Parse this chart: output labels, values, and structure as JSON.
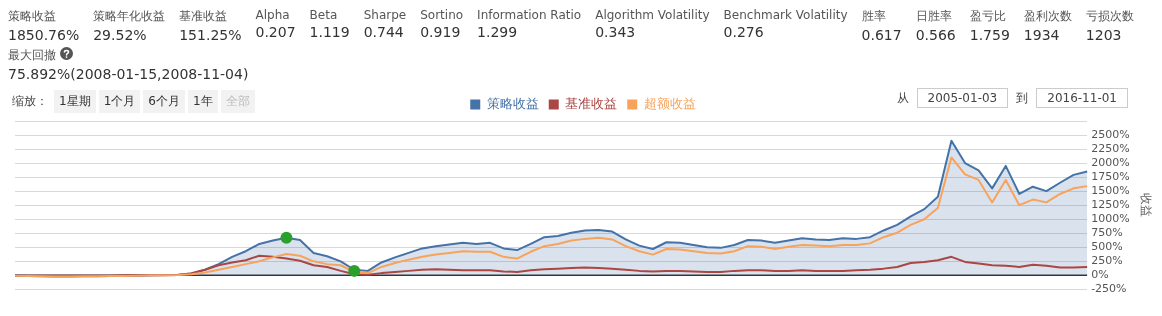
{
  "chart_data": [
    {
      "type": "other",
      "annotations": [
        "策略收益",
        "1850.76%",
        "策略年化收益",
        "29.52%",
        "基准收益",
        "151.25%",
        "Alpha",
        "0.207",
        "Beta",
        "1.119",
        "Sharpe",
        "0.744",
        "Sortino",
        "0.919",
        "Information Ratio",
        "1.299",
        "Algorithm Volatility",
        "0.343",
        "Benchmark Volatility",
        "0.276",
        "胜率",
        "0.617",
        "日胜率",
        "0.566",
        "盈亏比",
        "1.759",
        "盈利次数",
        "1934",
        "亏损次数",
        "1203",
        "最大回撤",
        "75.892%(2008-01-15,2008-11-04)"
      ]
    },
    {
      "type": "line",
      "y2label": "收益",
      "legend": "top",
      "grid": "y",
      "tick_labels": "y",
      "marker": "none",
      "annotations": [
        "缩放：",
        "1星期",
        "1个月",
        "6个月",
        "1年",
        "全部",
        "从",
        "2005-01-03",
        "到",
        "2016-11-01"
      ],
      "categories": [
        null,
        null,
        null,
        null,
        null,
        null,
        null,
        null,
        null,
        null,
        null,
        null,
        null,
        null,
        null,
        null,
        null,
        null,
        null,
        null,
        null,
        null,
        null,
        null,
        null,
        null,
        null,
        null,
        null,
        null,
        null,
        null,
        null,
        null,
        null,
        null,
        null,
        null,
        null,
        null,
        null,
        null,
        null,
        null,
        null,
        null,
        null,
        null,
        null,
        null,
        null,
        null,
        null,
        null,
        null,
        null,
        null,
        null,
        null,
        null,
        null,
        null,
        null,
        null,
        null,
        null,
        null,
        null,
        null,
        null,
        null,
        null,
        null,
        null,
        null,
        null,
        null,
        null,
        null,
        null
      ],
      "ylim": [
        -250,
        2750
      ],
      "yticks": [
        {
          "value": -250,
          "label": "-250%"
        },
        {
          "value": 0,
          "label": "0%"
        },
        {
          "value": 250,
          "label": "250%"
        },
        {
          "value": 500,
          "label": "500%"
        },
        {
          "value": 750,
          "label": "750%"
        },
        {
          "value": 1000,
          "label": "1000%"
        },
        {
          "value": 1250,
          "label": "1250%"
        },
        {
          "value": 1500,
          "label": "1500%"
        },
        {
          "value": 1750,
          "label": "1750%"
        },
        {
          "value": 2000,
          "label": "2000%"
        },
        {
          "value": 2250,
          "label": "2250%"
        },
        {
          "value": 2500,
          "label": "2500%"
        },
        {
          "value": 2750,
          "label": null
        }
      ],
      "ref_lines": [
        {
          "axis": "y",
          "value": 0,
          "color": "#333333"
        }
      ],
      "series": [
        {
          "name": "策略收益",
          "type": "area",
          "color": "#4572a7",
          "values": [
            0,
            -10,
            -15,
            -20,
            -20,
            -15,
            -15,
            -10,
            -10,
            -5,
            0,
            5,
            10,
            30,
            100,
            200,
            330,
            430,
            560,
            620,
            670,
            630,
            400,
            340,
            250,
            100,
            80,
            230,
            320,
            400,
            480,
            520,
            550,
            580,
            560,
            580,
            480,
            450,
            560,
            680,
            700,
            760,
            800,
            810,
            780,
            640,
            530,
            470,
            590,
            580,
            540,
            500,
            490,
            540,
            630,
            620,
            580,
            620,
            660,
            640,
            630,
            660,
            650,
            680,
            800,
            900,
            1050,
            1180,
            1400,
            2400,
            2000,
            1870,
            1550,
            1950,
            1450,
            1580,
            1500,
            1650,
            1790,
            1850
          ]
        },
        {
          "name": "基准收益",
          "type": "line",
          "color": "#aa4643",
          "values": [
            -5,
            -5,
            -5,
            -5,
            -5,
            -5,
            -5,
            -5,
            0,
            0,
            0,
            0,
            5,
            40,
            100,
            180,
            230,
            270,
            350,
            330,
            300,
            260,
            180,
            150,
            80,
            20,
            10,
            40,
            60,
            80,
            100,
            110,
            100,
            90,
            90,
            90,
            70,
            60,
            90,
            110,
            120,
            130,
            140,
            130,
            120,
            100,
            80,
            70,
            80,
            80,
            70,
            60,
            60,
            80,
            90,
            90,
            80,
            80,
            90,
            80,
            80,
            80,
            90,
            100,
            120,
            150,
            220,
            240,
            270,
            330,
            240,
            210,
            180,
            170,
            150,
            190,
            170,
            140,
            140,
            151
          ]
        },
        {
          "name": "超额收益",
          "type": "line",
          "color": "#f7a35c",
          "values": [
            -5,
            -10,
            -15,
            -20,
            -20,
            -15,
            -15,
            -10,
            -10,
            -5,
            0,
            0,
            5,
            20,
            50,
            100,
            150,
            200,
            250,
            320,
            380,
            350,
            250,
            200,
            180,
            60,
            40,
            150,
            220,
            280,
            330,
            370,
            400,
            430,
            420,
            420,
            330,
            300,
            420,
            520,
            560,
            620,
            650,
            670,
            640,
            520,
            430,
            370,
            470,
            460,
            430,
            400,
            390,
            430,
            520,
            510,
            470,
            510,
            540,
            530,
            520,
            540,
            540,
            570,
            680,
            760,
            900,
            1000,
            1200,
            2100,
            1800,
            1700,
            1300,
            1700,
            1250,
            1350,
            1300,
            1450,
            1550,
            1590
          ]
        },
        {
          "type": "scatter",
          "color": "#2ca02c",
          "marker": "circle",
          "values": [
            null,
            null,
            null,
            null,
            null,
            null,
            null,
            null,
            null,
            null,
            null,
            null,
            null,
            null,
            null,
            null,
            null,
            null,
            null,
            null,
            670,
            null,
            null,
            null,
            null,
            80,
            null,
            null,
            null,
            null,
            null,
            null,
            null,
            null,
            null,
            null,
            null,
            null,
            null,
            null,
            null,
            null,
            null,
            null,
            null,
            null,
            null,
            null,
            null,
            null,
            null,
            null,
            null,
            null,
            null,
            null,
            null,
            null,
            null,
            null,
            null,
            null,
            null,
            null,
            null,
            null,
            null,
            null,
            null,
            null,
            null,
            null,
            null,
            null,
            null,
            null,
            null,
            null,
            null,
            null
          ]
        }
      ]
    }
  ]
}
